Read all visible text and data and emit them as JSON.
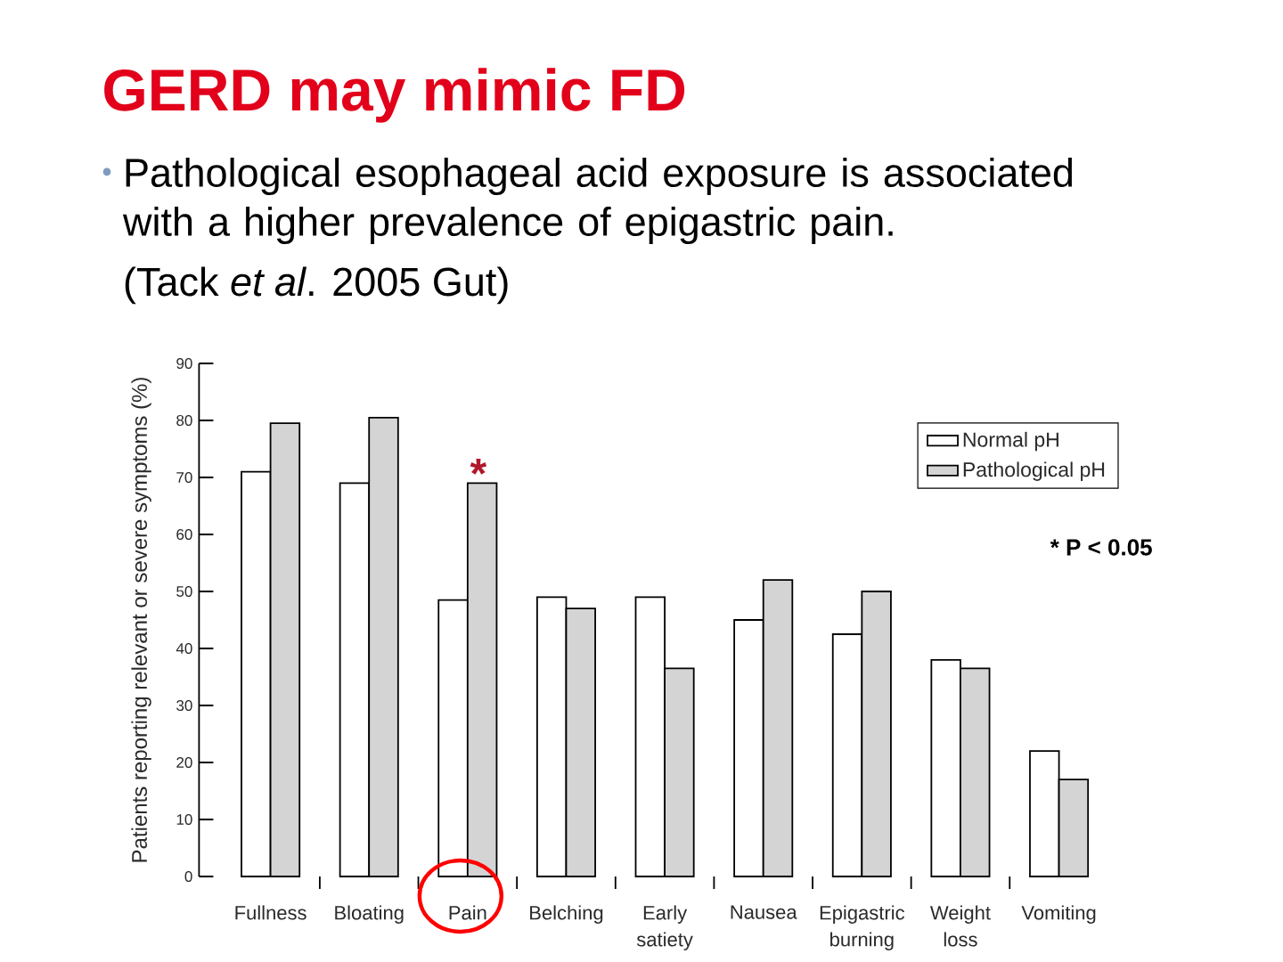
{
  "chart_data": {
    "type": "bar",
    "title": "GERD may mimic FD",
    "subtitle": "Pathological esophageal acid exposure is associated with a higher prevalence of epigastric pain.",
    "ylabel": "Patients reporting relevant or severe symptoms (%)",
    "categories": [
      "Fullness",
      "Bloating",
      "Pain",
      "Belching",
      "Early satiety",
      "Nausea",
      "Epigastric burning",
      "Weight loss",
      "Vomiting"
    ],
    "series": [
      {
        "name": "Normal pH",
        "color": "#ffffff",
        "values": [
          71,
          69,
          48.5,
          49,
          49,
          45,
          42.5,
          38,
          22
        ]
      },
      {
        "name": "Pathological pH",
        "color": "#d4d4d4",
        "values": [
          79.5,
          80.5,
          69,
          47,
          36.5,
          52,
          50,
          36.5,
          17
        ]
      }
    ],
    "ylim": [
      0,
      90
    ],
    "yticks": [
      0,
      10,
      20,
      30,
      40,
      50,
      60,
      70,
      80,
      90
    ],
    "legend": "top right",
    "annotations": [
      "(Tack *et al*. 2005 Gut)",
      {
        "text": "*",
        "x": "Pain",
        "y": 69
      },
      "* P < 0.05"
    ]
  }
}
